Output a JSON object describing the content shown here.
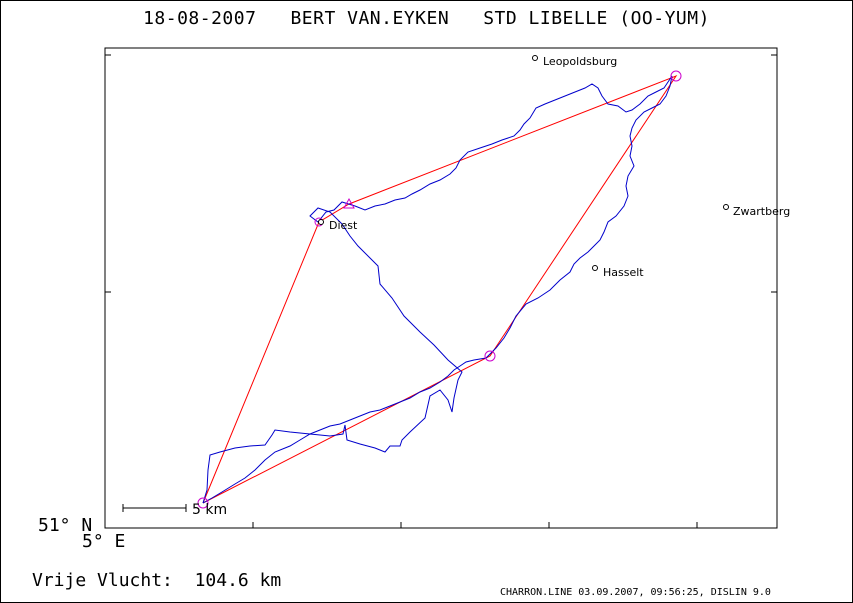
{
  "header": {
    "date": "18-08-2007",
    "pilot": "BERT VAN.EYKEN",
    "glider": "STD LIBELLE (OO-YUM)"
  },
  "axes": {
    "latitude_label": "51° N",
    "longitude_label": "5° E"
  },
  "towns": [
    {
      "name": "Leopoldsburg"
    },
    {
      "name": "Zwartberg"
    },
    {
      "name": "Diest"
    },
    {
      "name": "Hasselt"
    }
  ],
  "scale_bar": {
    "label": "5 km"
  },
  "result": {
    "label": "Vrije Vlucht:",
    "value": "104.6 km"
  },
  "footer": {
    "text": "CHARRON.LINE 03.09.2007, 09:56:25, DISLIN 9.0"
  },
  "colors": {
    "task": "#ff0000",
    "track": "#0000cc",
    "turnpoint": "#cc00cc"
  }
}
